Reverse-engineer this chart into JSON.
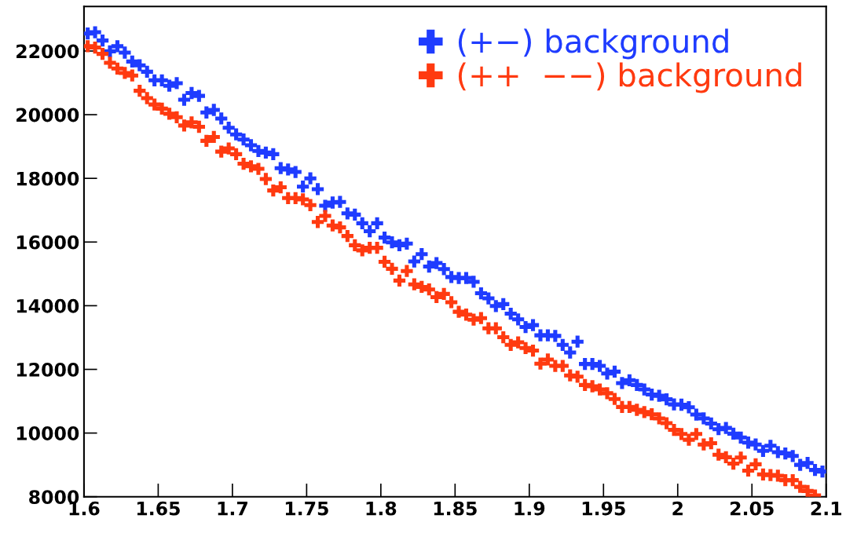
{
  "chart_data": {
    "type": "scatter",
    "x": [
      1.6025,
      1.6075,
      1.6125,
      1.6175,
      1.6225,
      1.6275,
      1.6325,
      1.6375,
      1.6425,
      1.6475,
      1.6525,
      1.6575,
      1.6625,
      1.6675,
      1.6725,
      1.6775,
      1.6825,
      1.6875,
      1.6925,
      1.6975,
      1.7025,
      1.7075,
      1.7125,
      1.7175,
      1.7225,
      1.7275,
      1.7325,
      1.7375,
      1.7425,
      1.7475,
      1.7525,
      1.7575,
      1.7625,
      1.7675,
      1.7725,
      1.7775,
      1.7825,
      1.7875,
      1.7925,
      1.7975,
      1.8025,
      1.8075,
      1.8125,
      1.8175,
      1.8225,
      1.8275,
      1.8325,
      1.8375,
      1.8425,
      1.8475,
      1.8525,
      1.8575,
      1.8625,
      1.8675,
      1.8725,
      1.8775,
      1.8825,
      1.8875,
      1.8925,
      1.8975,
      1.9025,
      1.9075,
      1.9125,
      1.9175,
      1.9225,
      1.9275,
      1.9325,
      1.9375,
      1.9425,
      1.9475,
      1.9525,
      1.9575,
      1.9625,
      1.9675,
      1.9725,
      1.9775,
      1.9825,
      1.9875,
      1.9925,
      1.9975,
      2.0025,
      2.0075,
      2.0125,
      2.0175,
      2.0225,
      2.0275,
      2.0325,
      2.0375,
      2.0425,
      2.0475,
      2.0525,
      2.0575,
      2.0625,
      2.0675,
      2.0725,
      2.0775,
      2.0825,
      2.0875,
      2.0925,
      2.0975
    ],
    "series": [
      {
        "name": "(+−) background",
        "color": "#1f3cff",
        "values": [
          22550,
          22590,
          22330,
          21990,
          22150,
          21950,
          21670,
          21550,
          21350,
          21080,
          21080,
          20910,
          20990,
          20470,
          20680,
          20590,
          20070,
          20150,
          19880,
          19590,
          19380,
          19220,
          19040,
          18860,
          18810,
          18760,
          18320,
          18280,
          18200,
          17740,
          18000,
          17660,
          17140,
          17240,
          17260,
          16900,
          16860,
          16590,
          16340,
          16590,
          16140,
          15990,
          15900,
          15950,
          15390,
          15620,
          15230,
          15340,
          15150,
          14900,
          14870,
          14870,
          14750,
          14390,
          14230,
          13990,
          14050,
          13750,
          13570,
          13330,
          13390,
          13070,
          13070,
          13050,
          12770,
          12530,
          12870,
          12170,
          12170,
          12110,
          11870,
          11930,
          11570,
          11660,
          11510,
          11370,
          11210,
          11170,
          11060,
          10900,
          10890,
          10810,
          10580,
          10460,
          10300,
          10120,
          10160,
          9980,
          9860,
          9700,
          9640,
          9440,
          9600,
          9400,
          9360,
          9280,
          9000,
          9060,
          8840,
          8790
        ]
      },
      {
        "name": "(++  −−) background",
        "color": "#ff3a10",
        "values": [
          22150,
          22110,
          21910,
          21630,
          21450,
          21310,
          21230,
          20750,
          20520,
          20320,
          20190,
          20030,
          19920,
          19660,
          19760,
          19620,
          19180,
          19300,
          18840,
          18940,
          18760,
          18460,
          18380,
          18300,
          17980,
          17620,
          17720,
          17380,
          17380,
          17340,
          17160,
          16630,
          16820,
          16520,
          16460,
          16190,
          15900,
          15740,
          15820,
          15820,
          15380,
          15160,
          14790,
          15090,
          14670,
          14590,
          14510,
          14270,
          14370,
          14110,
          13810,
          13720,
          13560,
          13610,
          13290,
          13290,
          13010,
          12770,
          12850,
          12670,
          12590,
          12180,
          12310,
          12110,
          12110,
          11810,
          11770,
          11510,
          11470,
          11370,
          11250,
          11070,
          10820,
          10820,
          10730,
          10660,
          10590,
          10460,
          10310,
          10100,
          9970,
          9790,
          9970,
          9640,
          9680,
          9320,
          9240,
          9040,
          9230,
          8820,
          9020,
          8700,
          8680,
          8660,
          8520,
          8520,
          8310,
          8180,
          8040,
          null
        ]
      }
    ],
    "xlim": [
      1.6,
      2.1
    ],
    "ylim": [
      8000,
      23400
    ],
    "xticks": [
      1.6,
      1.65,
      1.7,
      1.75,
      1.8,
      1.85,
      1.9,
      1.95,
      2,
      2.05,
      2.1
    ],
    "yticks": [
      8000,
      10000,
      12000,
      14000,
      16000,
      18000,
      20000,
      22000
    ],
    "marker": "cross",
    "grid": false,
    "legend": "top right"
  }
}
